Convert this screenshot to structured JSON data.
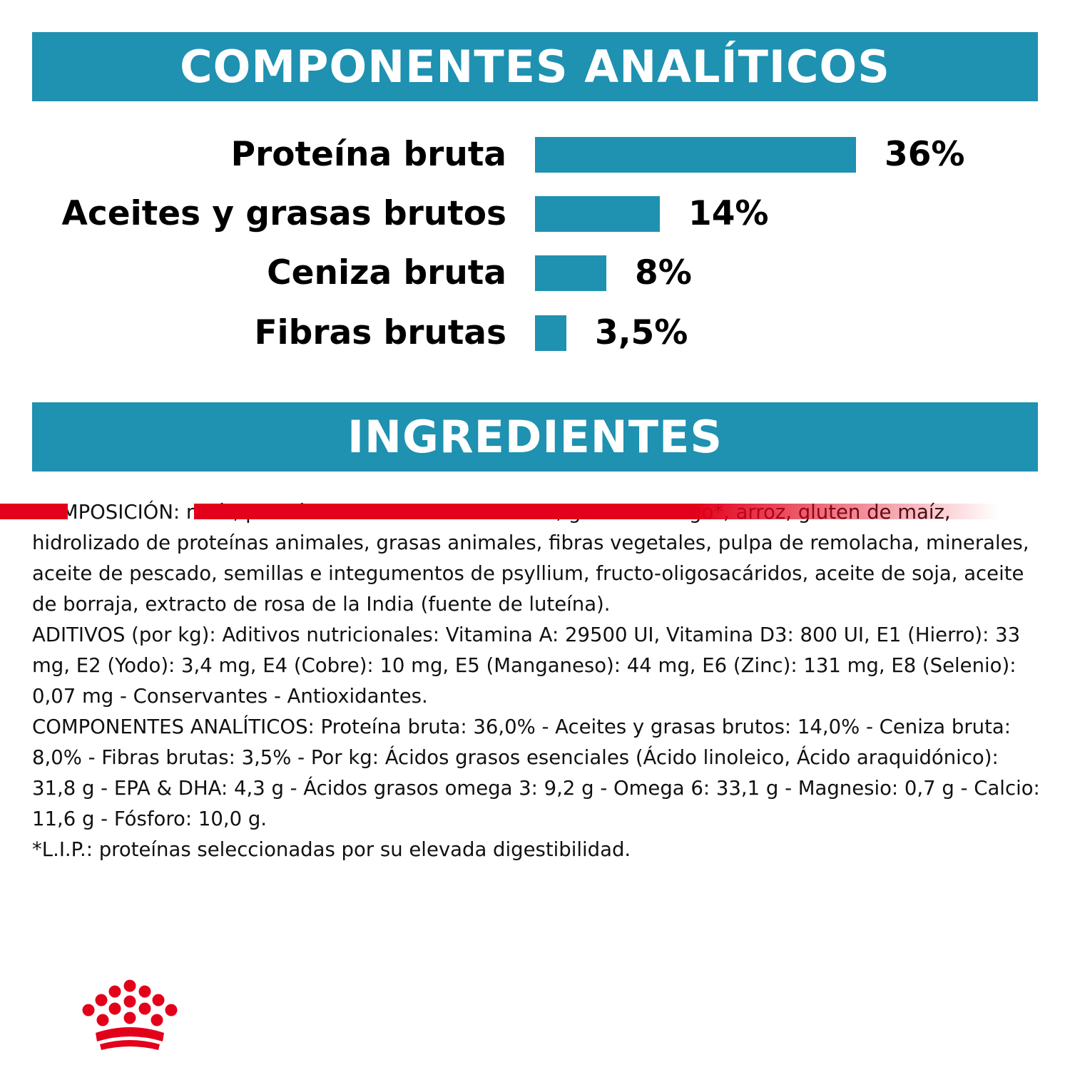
{
  "analytics": {
    "title": "COMPONENTES ANALÍTICOS",
    "rows": [
      {
        "label": "Proteína bruta",
        "value": "36%",
        "amount": 36
      },
      {
        "label": "Aceites y grasas brutos",
        "value": "14%",
        "amount": 14
      },
      {
        "label": "Ceniza bruta",
        "value": "8%",
        "amount": 8
      },
      {
        "label": "Fibras brutas",
        "value": "3,5%",
        "amount": 3.5
      }
    ],
    "bar_color": "#1f91b1"
  },
  "ingredients": {
    "title": "INGREDIENTES",
    "paragraphs": [
      "COMPOSICIÓN: maíz, proteínas de ave deshidratadas, gluten de trigo*, arroz, gluten de maíz, hidrolizado de proteínas animales, grasas animales, fibras vegetales, pulpa de remolacha, minerales, aceite de pescado, semillas e integumentos de psyllium, fructo-oligosacáridos, aceite de soja, aceite de borraja, extracto de rosa de la India (fuente de luteína).",
      " ADITIVOS (por kg): Aditivos nutricionales: Vitamina A: 29500 UI, Vitamina D3: 800 UI, E1 (Hierro): 33 mg, E2 (Yodo): 3,4 mg, E4 (Cobre): 10 mg, E5 (Manganeso): 44 mg, E6 (Zinc): 131 mg, E8 (Selenio): 0,07 mg - Conservantes - Antioxidantes.",
      " COMPONENTES ANALÍTICOS: Proteína bruta: 36,0% - Aceites y grasas brutos: 14,0% - Ceniza bruta: 8,0% - Fibras brutas: 3,5% - Por kg: Ácidos grasos esenciales (Ácido linoleico, Ácido araquidónico): 31,8 g - EPA & DHA: 4,3 g - Ácidos grasos omega 3: 9,2 g - Omega 6: 33,1 g - Magnesio: 0,7 g - Calcio: 11,6 g - Fósforo: 10,0 g.",
      " *L.I.P.: proteínas seleccionadas por su elevada digestibilidad."
    ]
  },
  "footer": {
    "logo_icon": "crown-logo-icon",
    "line_color": "#e2001a"
  },
  "colors": {
    "banner": "#1f91b1",
    "brand_red": "#e2001a"
  }
}
